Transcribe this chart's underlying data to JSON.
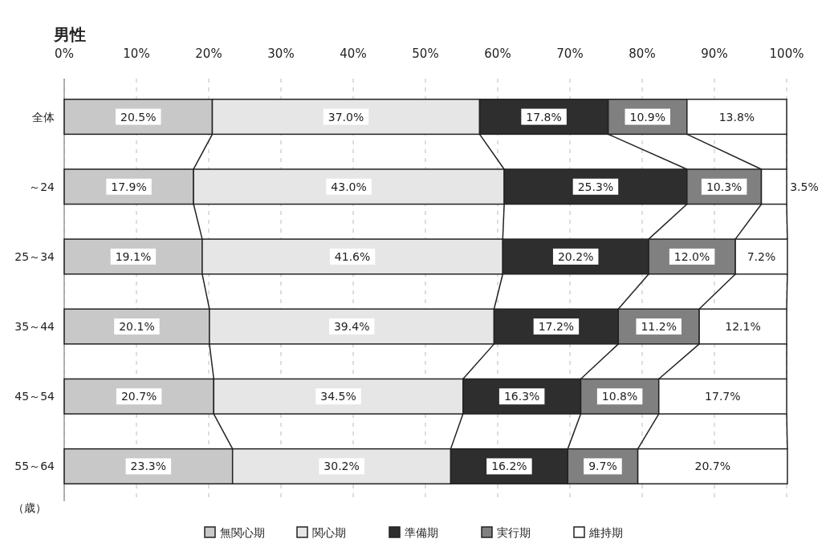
{
  "chart_data": {
    "type": "bar",
    "orientation": "horizontal",
    "stacked": true,
    "title": "男性",
    "ylabel": "（歳）",
    "categories": [
      "全体",
      "～24",
      "25～34",
      "35～44",
      "45～54",
      "55～64"
    ],
    "xlim": [
      0,
      100
    ],
    "xticks": [
      {
        "value": 0,
        "label": "0%"
      },
      {
        "value": 10,
        "label": "10%"
      },
      {
        "value": 20,
        "label": "20%"
      },
      {
        "value": 30,
        "label": "30%"
      },
      {
        "value": 40,
        "label": "40%"
      },
      {
        "value": 50,
        "label": "50%"
      },
      {
        "value": 60,
        "label": "60%"
      },
      {
        "value": 70,
        "label": "70%"
      },
      {
        "value": 80,
        "label": "80%"
      },
      {
        "value": 90,
        "label": "90%"
      },
      {
        "value": 100,
        "label": "100%"
      }
    ],
    "grid": "x",
    "legend": "bottom",
    "series": [
      {
        "name": "無関心期",
        "color": "#c8c8c8",
        "values": [
          20.5,
          17.9,
          19.1,
          20.1,
          20.7,
          23.3
        ],
        "value_labels": [
          "20.5%",
          "17.9%",
          "19.1%",
          "20.1%",
          "20.7%",
          "23.3%"
        ]
      },
      {
        "name": "関心期",
        "color": "#e6e6e6",
        "values": [
          37.0,
          43.0,
          41.6,
          39.4,
          34.5,
          30.2
        ],
        "value_labels": [
          "37.0%",
          "43.0%",
          "41.6%",
          "39.4%",
          "34.5%",
          "30.2%"
        ]
      },
      {
        "name": "準備期",
        "color": "#2e2e2e",
        "values": [
          17.8,
          25.3,
          20.2,
          17.2,
          16.3,
          16.2
        ],
        "value_labels": [
          "17.8%",
          "25.3%",
          "20.2%",
          "17.2%",
          "16.3%",
          "16.2%"
        ]
      },
      {
        "name": "実行期",
        "color": "#808080",
        "values": [
          10.9,
          10.3,
          12.0,
          11.2,
          10.8,
          9.7
        ],
        "value_labels": [
          "10.9%",
          "10.3%",
          "12.0%",
          "11.2%",
          "10.8%",
          "9.7%"
        ]
      },
      {
        "name": "維持期",
        "color": "#ffffff",
        "values": [
          13.8,
          3.5,
          7.2,
          12.1,
          17.7,
          20.7
        ],
        "value_labels": [
          "13.8%",
          "3.5%",
          "7.2%",
          "12.1%",
          "17.7%",
          "20.7%"
        ]
      }
    ]
  }
}
